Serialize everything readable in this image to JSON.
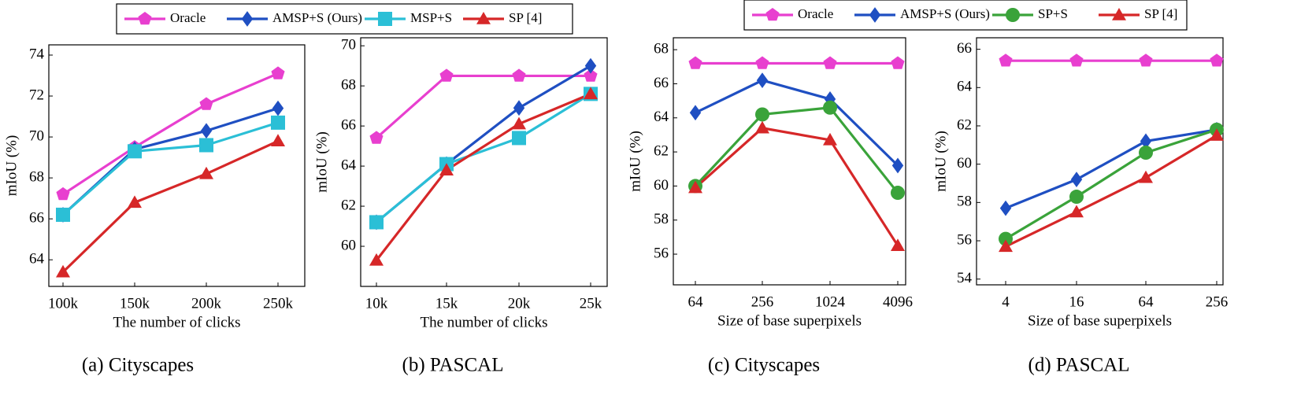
{
  "chart_data": [
    {
      "type": "line",
      "caption": "(a) Cityscapes",
      "x_label": "The number of clicks",
      "y_label": "mIoU (%)",
      "categories": [
        "100k",
        "150k",
        "200k",
        "250k"
      ],
      "ylim": [
        62.7,
        74.5
      ],
      "yticks": [
        64,
        66,
        68,
        70,
        72,
        74
      ],
      "series": [
        {
          "name": "Oracle",
          "color": "#e83fcf",
          "marker": "pentagon",
          "values": [
            67.2,
            69.5,
            71.6,
            73.1
          ]
        },
        {
          "name": "AMSP+S (Ours)",
          "color": "#1f4fc2",
          "marker": "diamond",
          "values": [
            66.2,
            69.4,
            70.3,
            71.4
          ]
        },
        {
          "name": "MSP+S",
          "color": "#2bbfd6",
          "marker": "square",
          "values": [
            66.2,
            69.3,
            69.6,
            70.7
          ]
        },
        {
          "name": "SP [4]",
          "color": "#d62728",
          "marker": "triangle",
          "values": [
            63.4,
            66.8,
            68.2,
            69.8
          ]
        }
      ]
    },
    {
      "type": "line",
      "caption": "(b) PASCAL",
      "x_label": "The number of clicks",
      "y_label": "mIoU (%)",
      "categories": [
        "10k",
        "15k",
        "20k",
        "25k"
      ],
      "ylim": [
        58.0,
        70.4
      ],
      "yticks": [
        60,
        62,
        64,
        66,
        68,
        70
      ],
      "series": [
        {
          "color": "#e83fcf",
          "marker": "pentagon",
          "values": [
            65.4,
            68.5,
            68.5,
            68.5
          ]
        },
        {
          "color": "#1f4fc2",
          "marker": "diamond",
          "values": [
            61.2,
            64.1,
            66.9,
            69.0
          ]
        },
        {
          "color": "#2bbfd6",
          "marker": "square",
          "values": [
            61.2,
            64.1,
            65.4,
            67.6
          ]
        },
        {
          "color": "#d62728",
          "marker": "triangle",
          "values": [
            59.3,
            63.8,
            66.1,
            67.6
          ]
        }
      ]
    },
    {
      "type": "line",
      "caption": "(c) Cityscapes",
      "x_label": "Size of base superpixels",
      "y_label": "mIoU (%)",
      "categories": [
        "64",
        "256",
        "1024",
        "4096"
      ],
      "ylim": [
        54.2,
        68.7
      ],
      "yticks": [
        56,
        58,
        60,
        62,
        64,
        66,
        68
      ],
      "series": [
        {
          "name": "Oracle",
          "color": "#e83fcf",
          "marker": "pentagon",
          "values": [
            67.2,
            67.2,
            67.2,
            67.2
          ]
        },
        {
          "name": "AMSP+S (Ours)",
          "color": "#1f4fc2",
          "marker": "diamond",
          "values": [
            64.3,
            66.2,
            65.1,
            61.2
          ]
        },
        {
          "name": "SP+S",
          "color": "#3aa33a",
          "marker": "circle",
          "values": [
            60.0,
            64.2,
            64.6,
            59.6
          ]
        },
        {
          "name": "SP [4]",
          "color": "#d62728",
          "marker": "triangle",
          "values": [
            59.9,
            63.4,
            62.7,
            56.5
          ]
        }
      ]
    },
    {
      "type": "line",
      "caption": "(d) PASCAL",
      "x_label": "Size of base superpixels",
      "y_label": "mIoU (%)",
      "categories": [
        "4",
        "16",
        "64",
        "256"
      ],
      "ylim": [
        53.7,
        66.6
      ],
      "yticks": [
        54,
        56,
        58,
        60,
        62,
        64,
        66
      ],
      "series": [
        {
          "color": "#e83fcf",
          "marker": "pentagon",
          "values": [
            65.4,
            65.4,
            65.4,
            65.4
          ]
        },
        {
          "color": "#1f4fc2",
          "marker": "diamond",
          "values": [
            57.7,
            59.2,
            61.2,
            61.8
          ]
        },
        {
          "color": "#3aa33a",
          "marker": "circle",
          "values": [
            56.1,
            58.3,
            60.6,
            61.8
          ]
        },
        {
          "color": "#d62728",
          "marker": "triangle",
          "values": [
            55.7,
            57.5,
            59.3,
            61.5
          ]
        }
      ]
    }
  ]
}
